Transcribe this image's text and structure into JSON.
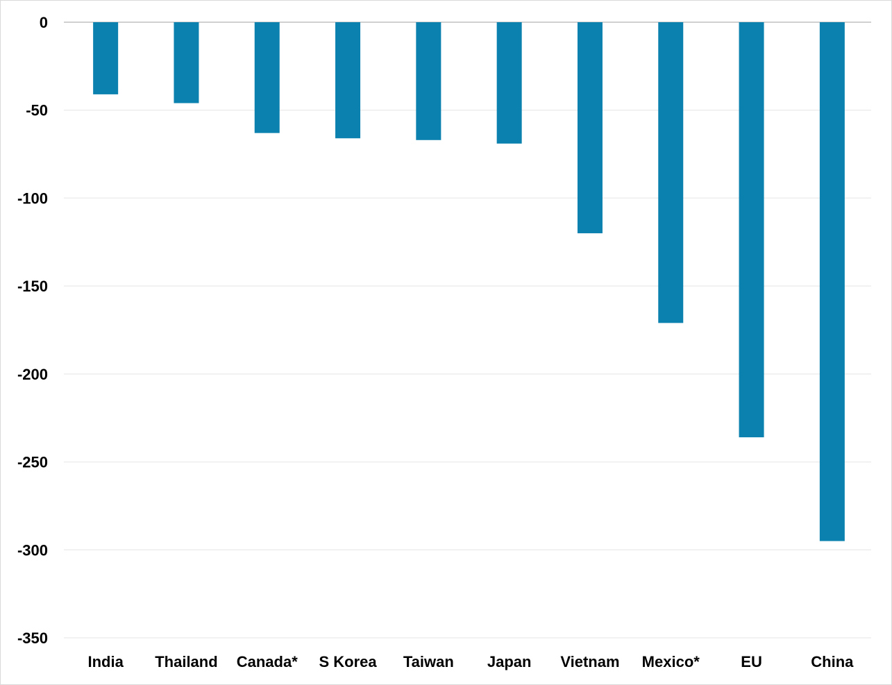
{
  "chart_data": {
    "type": "bar",
    "title": "",
    "xlabel": "",
    "ylabel": "",
    "categories": [
      "India",
      "Thailand",
      "Canada*",
      "S Korea",
      "Taiwan",
      "Japan",
      "Vietnam",
      "Mexico*",
      "EU",
      "China"
    ],
    "values": [
      -41,
      -46,
      -63,
      -66,
      -67,
      -69,
      -120,
      -171,
      -236,
      -295
    ],
    "ylim": [
      -350,
      0
    ],
    "yticks": [
      0,
      -50,
      -100,
      -150,
      -200,
      -250,
      -300,
      -350
    ],
    "ytick_labels": [
      "0",
      "-50",
      "-100",
      "-150",
      "-200",
      "-250",
      "-300",
      "-350"
    ],
    "grid": true,
    "legend": "none",
    "bar_color": "#0A81AE",
    "gridline_color": "#EDEDED",
    "baseline_color": "#D0D0D0"
  }
}
